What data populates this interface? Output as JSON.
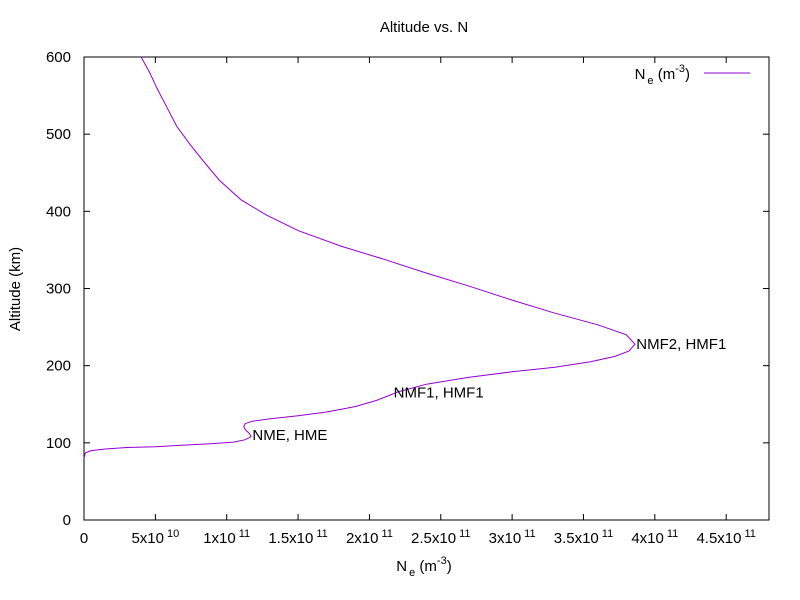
{
  "chart_data": {
    "type": "line",
    "title": "Altitude vs. N",
    "xlabel": {
      "base": "N",
      "sub": "e",
      "unit_pre": " (m",
      "unit_sup": "-3",
      "unit_post": ")"
    },
    "ylabel": "Altitude (km)",
    "xlim": [
      0,
      480000000000.0
    ],
    "ylim": [
      0,
      600
    ],
    "grid": false,
    "legend_position": "top-right",
    "x_ticks": [
      {
        "value": 0,
        "mantissa": "0",
        "exp": ""
      },
      {
        "value": 50000000000.0,
        "mantissa": "5x10",
        "exp": "10"
      },
      {
        "value": 100000000000.0,
        "mantissa": "1x10",
        "exp": "11"
      },
      {
        "value": 150000000000.0,
        "mantissa": "1.5x10",
        "exp": "11"
      },
      {
        "value": 200000000000.0,
        "mantissa": "2x10",
        "exp": "11"
      },
      {
        "value": 250000000000.0,
        "mantissa": "2.5x10",
        "exp": "11"
      },
      {
        "value": 300000000000.0,
        "mantissa": "3x10",
        "exp": "11"
      },
      {
        "value": 350000000000.0,
        "mantissa": "3.5x10",
        "exp": "11"
      },
      {
        "value": 400000000000.0,
        "mantissa": "4x10",
        "exp": "11"
      },
      {
        "value": 450000000000.0,
        "mantissa": "4.5x10",
        "exp": "11"
      }
    ],
    "y_ticks": [
      0,
      100,
      200,
      300,
      400,
      500,
      600
    ],
    "series": [
      {
        "name": {
          "base": "N",
          "sub": "e",
          "unit_pre": " (m",
          "unit_sup": "-3",
          "unit_post": ")"
        },
        "color": "#9400d3",
        "points": [
          [
            0,
            80
          ],
          [
            1000000000.0,
            87
          ],
          [
            5000000000.0,
            90
          ],
          [
            15000000000.0,
            92
          ],
          [
            30000000000.0,
            94
          ],
          [
            50000000000.0,
            95
          ],
          [
            70000000000.0,
            97
          ],
          [
            90000000000.0,
            99
          ],
          [
            105000000000.0,
            101
          ],
          [
            113000000000.0,
            104
          ],
          [
            117000000000.0,
            108
          ],
          [
            116000000000.0,
            112
          ],
          [
            113000000000.0,
            117
          ],
          [
            112000000000.0,
            121
          ],
          [
            113000000000.0,
            125
          ],
          [
            118000000000.0,
            128
          ],
          [
            130000000000.0,
            131
          ],
          [
            150000000000.0,
            135
          ],
          [
            170000000000.0,
            140
          ],
          [
            190000000000.0,
            147
          ],
          [
            205000000000.0,
            155
          ],
          [
            220000000000.0,
            166
          ],
          [
            240000000000.0,
            176
          ],
          [
            270000000000.0,
            185
          ],
          [
            300000000000.0,
            192
          ],
          [
            330000000000.0,
            198
          ],
          [
            355000000000.0,
            205
          ],
          [
            372000000000.0,
            212
          ],
          [
            382000000000.0,
            219
          ],
          [
            386000000000.0,
            228
          ],
          [
            380000000000.0,
            240
          ],
          [
            360000000000.0,
            253
          ],
          [
            330000000000.0,
            268
          ],
          [
            300000000000.0,
            285
          ],
          [
            270000000000.0,
            303
          ],
          [
            240000000000.0,
            320
          ],
          [
            210000000000.0,
            338
          ],
          [
            180000000000.0,
            355
          ],
          [
            150000000000.0,
            375
          ],
          [
            128000000000.0,
            395
          ],
          [
            110000000000.0,
            415
          ],
          [
            95000000000.0,
            440
          ],
          [
            85000000000.0,
            462
          ],
          [
            75000000000.0,
            485
          ],
          [
            65000000000.0,
            510
          ],
          [
            58000000000.0,
            535
          ],
          [
            51000000000.0,
            560
          ],
          [
            46000000000.0,
            580
          ],
          [
            40000000000.0,
            600
          ]
        ]
      }
    ],
    "annotations": [
      {
        "text": "NME, HME",
        "x": 118000000000.0,
        "y": 110
      },
      {
        "text": "NMF1, HMF1",
        "x": 217000000000.0,
        "y": 165
      },
      {
        "text": "NMF2, HMF1",
        "x": 387000000000.0,
        "y": 228
      }
    ]
  }
}
